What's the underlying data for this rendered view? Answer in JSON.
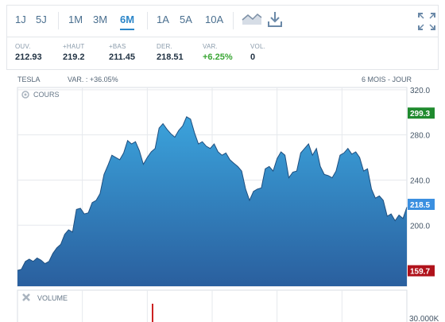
{
  "periods": [
    "1J",
    "5J",
    "1M",
    "3M",
    "6M",
    "1A",
    "5A",
    "10A"
  ],
  "active_period": "6M",
  "icons": {
    "chart_type": "area-chart-icon",
    "download": "download-icon",
    "fullscreen": "fullscreen-icon",
    "settings": "gear-icon",
    "close": "close-icon"
  },
  "stats": [
    {
      "label": "OUV.",
      "value": "212.93"
    },
    {
      "label": "+HAUT",
      "value": "219.2"
    },
    {
      "label": "+BAS",
      "value": "211.45"
    },
    {
      "label": "DER.",
      "value": "218.51"
    },
    {
      "label": "VAR.",
      "value": "+6.25%"
    },
    {
      "label": "VOL.",
      "value": "0"
    }
  ],
  "chart_header": {
    "title": "TESLA",
    "change": "VAR. : +36.05%",
    "period": "6 MOIS - JOUR"
  },
  "colors": {
    "accent": "#2c86c9",
    "area_top": "#3ba3dc",
    "area_bottom": "#2a5f9e",
    "high_tag": "#1f8a2e",
    "low_tag": "#b0121b",
    "last_tag": "#3a8fe0",
    "volume_bar": "#cc2222"
  },
  "chart_data": {
    "type": "area",
    "panel_label": "COURS",
    "volume_label": "VOLUME",
    "y_ticks": [
      "320.0",
      "280.0",
      "240.0",
      "200.0"
    ],
    "y_tick_values": [
      320,
      280,
      240,
      200
    ],
    "ylim": [
      146,
      322
    ],
    "volume_tick": "30.000K",
    "high_tag": {
      "label": "299.3",
      "value": 299.3
    },
    "last_tag": {
      "label": "218.5",
      "value": 218.5
    },
    "low_tag": {
      "label": "159.7",
      "value": 159.7
    },
    "values": [
      160,
      161,
      168,
      170,
      168,
      171,
      169,
      166,
      168,
      175,
      180,
      183,
      192,
      196,
      194,
      214,
      215,
      210,
      211,
      220,
      222,
      228,
      245,
      253,
      262,
      260,
      258,
      264,
      275,
      272,
      274,
      266,
      254,
      260,
      265,
      268,
      286,
      290,
      285,
      281,
      278,
      284,
      288,
      296,
      294,
      282,
      272,
      274,
      270,
      268,
      272,
      265,
      262,
      264,
      258,
      255,
      252,
      248,
      232,
      222,
      230,
      232,
      233,
      250,
      252,
      248,
      259,
      265,
      262,
      242,
      247,
      248,
      264,
      268,
      272,
      262,
      268,
      252,
      245,
      244,
      242,
      248,
      262,
      264,
      268,
      263,
      265,
      260,
      248,
      250,
      232,
      224,
      226,
      222,
      208,
      210,
      204,
      209,
      206,
      216
    ]
  }
}
